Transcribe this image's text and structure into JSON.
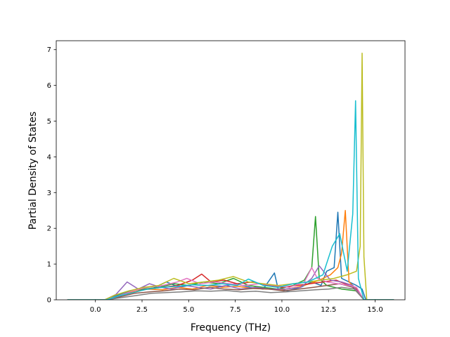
{
  "chart_data": {
    "type": "line",
    "title": "",
    "xlabel": "Frequency (THz)",
    "ylabel": "Partial Density of States",
    "xlim": [
      -2.1,
      16.6
    ],
    "ylim": [
      0,
      7.25
    ],
    "xticks": [
      0.0,
      2.5,
      5.0,
      7.5,
      10.0,
      12.5,
      15.0
    ],
    "xtick_labels": [
      "0.0",
      "2.5",
      "5.0",
      "7.5",
      "10.0",
      "12.5",
      "15.0"
    ],
    "yticks": [
      0,
      1,
      2,
      3,
      4,
      5,
      6,
      7
    ],
    "ytick_labels": [
      "0",
      "1",
      "2",
      "3",
      "4",
      "5",
      "6",
      "7"
    ],
    "grid": false,
    "legend": "none",
    "series": [
      {
        "color": "#1f77b4",
        "x": [
          -1.5,
          0.5,
          0.9,
          1.6,
          2.2,
          3.0,
          3.8,
          4.5,
          5.2,
          6.0,
          6.8,
          7.5,
          8.3,
          9.0,
          9.6,
          9.8,
          10.3,
          11.0,
          11.6,
          12.1,
          12.4,
          12.8,
          13.0,
          13.2,
          13.6,
          14.0,
          14.3,
          14.5,
          16.0
        ],
        "y": [
          0,
          0,
          0.08,
          0.2,
          0.28,
          0.3,
          0.5,
          0.35,
          0.42,
          0.4,
          0.38,
          0.45,
          0.35,
          0.3,
          0.75,
          0.3,
          0.25,
          0.35,
          0.5,
          0.4,
          0.8,
          0.9,
          2.45,
          0.6,
          0.5,
          0.4,
          0.3,
          0,
          0
        ]
      },
      {
        "color": "#ff7f0e",
        "x": [
          -1.5,
          0.6,
          1.2,
          2.0,
          2.8,
          3.6,
          4.4,
          5.2,
          6.0,
          6.8,
          7.6,
          8.4,
          9.2,
          10.0,
          10.8,
          11.5,
          12.0,
          12.6,
          13.0,
          13.2,
          13.4,
          13.6,
          14.0,
          14.4,
          16.0
        ],
        "y": [
          0,
          0,
          0.1,
          0.22,
          0.3,
          0.28,
          0.35,
          0.3,
          0.4,
          0.35,
          0.38,
          0.32,
          0.3,
          0.28,
          0.35,
          0.45,
          0.55,
          0.7,
          0.9,
          1.3,
          2.5,
          0.5,
          0.3,
          0,
          0
        ]
      },
      {
        "color": "#2ca02c",
        "x": [
          -1.5,
          0.5,
          1.0,
          1.8,
          2.6,
          3.4,
          4.2,
          5.0,
          5.8,
          6.6,
          7.4,
          8.2,
          9.0,
          9.8,
          10.6,
          11.2,
          11.6,
          11.8,
          12.0,
          12.4,
          12.8,
          13.2,
          14.0,
          14.4,
          16.0
        ],
        "y": [
          0,
          0,
          0.12,
          0.25,
          0.3,
          0.35,
          0.45,
          0.4,
          0.5,
          0.45,
          0.6,
          0.4,
          0.35,
          0.3,
          0.4,
          0.55,
          0.9,
          2.33,
          0.6,
          0.4,
          0.35,
          0.3,
          0.25,
          0,
          0
        ]
      },
      {
        "color": "#d62728",
        "x": [
          -1.5,
          0.6,
          1.2,
          2.0,
          2.8,
          3.6,
          4.4,
          5.2,
          5.7,
          6.2,
          6.9,
          7.6,
          8.4,
          9.2,
          10.0,
          10.8,
          11.5,
          12.2,
          12.9,
          13.6,
          14.0,
          14.4,
          16.0
        ],
        "y": [
          0,
          0,
          0.1,
          0.2,
          0.3,
          0.35,
          0.4,
          0.55,
          0.72,
          0.5,
          0.55,
          0.45,
          0.5,
          0.4,
          0.35,
          0.4,
          0.45,
          0.5,
          0.55,
          0.4,
          0.3,
          0,
          0
        ]
      },
      {
        "color": "#9467bd",
        "x": [
          -1.5,
          0.5,
          1.1,
          1.7,
          2.3,
          2.9,
          3.5,
          4.1,
          4.8,
          5.5,
          6.2,
          7.0,
          7.8,
          8.6,
          9.4,
          10.2,
          11.0,
          11.6,
          12.0,
          12.6,
          13.2,
          13.8,
          14.4,
          16.0
        ],
        "y": [
          0,
          0,
          0.15,
          0.5,
          0.3,
          0.45,
          0.35,
          0.3,
          0.4,
          0.35,
          0.3,
          0.4,
          0.3,
          0.35,
          0.3,
          0.3,
          0.35,
          0.6,
          0.95,
          0.55,
          0.5,
          0.4,
          0,
          0
        ]
      },
      {
        "color": "#8c564b",
        "x": [
          -1.5,
          0.6,
          1.3,
          2.1,
          2.9,
          3.7,
          4.5,
          5.3,
          6.1,
          6.9,
          7.7,
          8.5,
          9.3,
          10.1,
          10.9,
          11.7,
          12.4,
          13.1,
          13.8,
          14.4,
          16.0
        ],
        "y": [
          0,
          0,
          0.08,
          0.18,
          0.22,
          0.25,
          0.3,
          0.28,
          0.35,
          0.3,
          0.28,
          0.32,
          0.3,
          0.25,
          0.3,
          0.35,
          0.4,
          0.45,
          0.35,
          0,
          0
        ]
      },
      {
        "color": "#e377c2",
        "x": [
          -1.5,
          0.5,
          1.2,
          2.0,
          2.8,
          3.6,
          4.4,
          4.9,
          5.6,
          6.4,
          7.2,
          8.0,
          8.8,
          9.6,
          10.4,
          11.2,
          11.6,
          11.9,
          12.4,
          13.0,
          13.6,
          14.0,
          14.4,
          16.0
        ],
        "y": [
          0,
          0,
          0.1,
          0.25,
          0.35,
          0.4,
          0.5,
          0.6,
          0.45,
          0.5,
          0.45,
          0.4,
          0.45,
          0.4,
          0.35,
          0.5,
          0.9,
          0.6,
          0.5,
          0.45,
          0.4,
          0.35,
          0,
          0
        ]
      },
      {
        "color": "#7f7f7f",
        "x": [
          -1.5,
          0.6,
          1.4,
          2.2,
          3.0,
          3.8,
          4.6,
          5.4,
          6.2,
          7.0,
          7.8,
          8.6,
          9.4,
          10.2,
          11.0,
          11.8,
          12.5,
          13.2,
          13.9,
          14.4,
          16.0
        ],
        "y": [
          0,
          0,
          0.06,
          0.12,
          0.18,
          0.2,
          0.22,
          0.25,
          0.24,
          0.26,
          0.22,
          0.24,
          0.2,
          0.22,
          0.25,
          0.28,
          0.3,
          0.35,
          0.3,
          0,
          0
        ]
      },
      {
        "color": "#bcbd22",
        "x": [
          -1.5,
          0.5,
          1.0,
          1.8,
          2.6,
          3.4,
          4.2,
          5.0,
          5.8,
          6.6,
          7.4,
          8.2,
          9.0,
          9.8,
          10.6,
          11.4,
          12.1,
          12.8,
          13.5,
          14.0,
          14.2,
          14.3,
          14.4,
          14.55,
          16.0
        ],
        "y": [
          0,
          0,
          0.12,
          0.25,
          0.35,
          0.4,
          0.6,
          0.45,
          0.5,
          0.55,
          0.65,
          0.5,
          0.45,
          0.4,
          0.45,
          0.5,
          0.55,
          0.6,
          0.7,
          0.8,
          1.5,
          6.9,
          1.2,
          0,
          0
        ]
      },
      {
        "color": "#17becf",
        "x": [
          -1.5,
          0.6,
          1.2,
          2.0,
          2.8,
          3.6,
          4.4,
          5.2,
          6.0,
          6.8,
          7.6,
          8.2,
          9.0,
          9.8,
          10.6,
          11.4,
          12.2,
          12.7,
          13.1,
          13.5,
          13.8,
          13.95,
          14.1,
          14.4,
          16.0
        ],
        "y": [
          0,
          0,
          0.1,
          0.2,
          0.3,
          0.35,
          0.38,
          0.42,
          0.4,
          0.45,
          0.4,
          0.58,
          0.4,
          0.35,
          0.45,
          0.5,
          0.7,
          1.5,
          1.85,
          0.8,
          2.4,
          5.57,
          0.6,
          0,
          0
        ]
      }
    ]
  }
}
